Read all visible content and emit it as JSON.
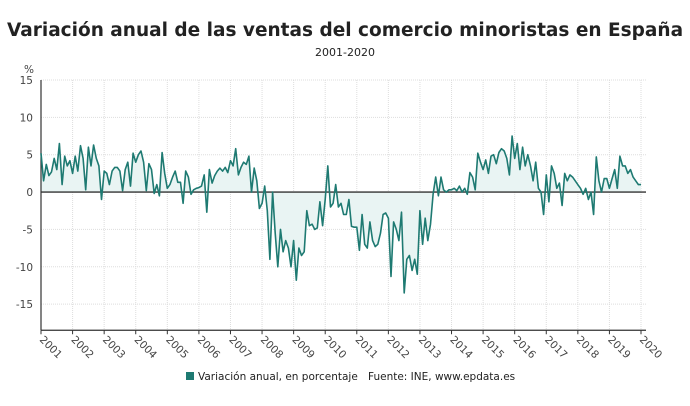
{
  "chart_data": {
    "type": "line",
    "title": "Variación anual de las ventas del comercio minoristas en España",
    "subtitle": "2001-2020",
    "ylabel": "%",
    "xlabel": "",
    "ylim": [
      -18.5,
      15
    ],
    "yticks": [
      15,
      10,
      5,
      0,
      -5,
      -10,
      -15
    ],
    "xticks": [
      "2001",
      "2002",
      "2003",
      "2004",
      "2005",
      "2006",
      "2007",
      "2008",
      "2009",
      "2010",
      "2011",
      "2012",
      "2013",
      "2014",
      "2015",
      "2016",
      "2017",
      "2018",
      "2019",
      "2020"
    ],
    "grid": true,
    "frequency": "monthly",
    "series": [
      {
        "name": "Variación anual, en porcentaje",
        "color": "#1e7a72",
        "fill_color": "#e9f4f3",
        "values_by_year": {
          "2001": [
            5.2,
            1.5,
            3.7,
            2.2,
            2.7,
            4.5,
            3.0,
            6.5,
            1.0,
            4.8,
            3.5,
            4.2
          ],
          "2002": [
            2.5,
            4.8,
            2.8,
            6.2,
            4.5,
            0.3,
            6.0,
            3.5,
            6.3,
            4.5,
            3.5,
            -1.0
          ],
          "2003": [
            2.8,
            2.5,
            1.0,
            2.8,
            3.3,
            3.3,
            2.8,
            0.2,
            3.0,
            4.0,
            0.8,
            5.2
          ],
          "2004": [
            4.0,
            5.0,
            5.5,
            4.0,
            0.2,
            3.8,
            3.0,
            -0.2,
            1.0,
            -0.5,
            5.3,
            2.5
          ],
          "2005": [
            0.5,
            1.0,
            2.0,
            2.8,
            1.3,
            1.3,
            -1.5,
            2.8,
            2.0,
            -0.3,
            0.3,
            0.5
          ],
          "2006": [
            0.6,
            0.8,
            2.3,
            -2.7,
            3.0,
            1.2,
            2.2,
            2.8,
            3.2,
            2.8,
            3.3,
            2.6
          ],
          "2007": [
            4.2,
            3.5,
            5.8,
            2.3,
            3.3,
            4.0,
            3.7,
            4.8,
            0.0,
            3.2,
            1.5,
            -2.2
          ],
          "2008": [
            -1.5,
            0.8,
            -2.5,
            -9.0,
            0.0,
            -5.5,
            -10.0,
            -5.0,
            -8.0,
            -6.5,
            -7.5,
            -10.0
          ],
          "2009": [
            -6.5,
            -11.8,
            -7.5,
            -8.5,
            -8.0,
            -2.5,
            -4.5,
            -4.3,
            -5.0,
            -4.8,
            -1.3,
            -4.5
          ],
          "2010": [
            -1.0,
            3.5,
            -2.0,
            -1.5,
            1.0,
            -2.0,
            -1.5,
            -3.0,
            -3.0,
            -1.0,
            -4.6,
            -4.7
          ],
          "2011": [
            -4.7,
            -7.8,
            -3.0,
            -7.0,
            -7.5,
            -4.0,
            -6.5,
            -7.3,
            -7.0,
            -5.5,
            -3.0,
            -2.8
          ],
          "2012": [
            -3.5,
            -11.3,
            -4.0,
            -5.0,
            -6.5,
            -2.7,
            -13.5,
            -9.0,
            -8.5,
            -10.5,
            -9.0,
            -11.0
          ],
          "2013": [
            -2.5,
            -7.0,
            -3.5,
            -6.5,
            -4.3,
            -0.3,
            2.0,
            -0.5,
            2.0,
            0.3,
            0.0,
            0.3
          ],
          "2014": [
            0.3,
            0.5,
            0.2,
            0.8,
            0.0,
            0.5,
            -0.3,
            2.6,
            2.0,
            0.3,
            5.2,
            4.0
          ],
          "2015": [
            3.0,
            4.3,
            2.5,
            4.8,
            5.0,
            3.8,
            5.3,
            5.8,
            5.5,
            4.5,
            2.3,
            7.5
          ],
          "2016": [
            4.5,
            6.5,
            3.0,
            6.0,
            3.5,
            5.0,
            3.5,
            1.5,
            4.0,
            0.5,
            0.0,
            -3.0
          ],
          "2017": [
            2.3,
            -1.3,
            3.5,
            2.5,
            0.5,
            1.2,
            -1.8,
            2.5,
            1.5,
            2.3,
            2.0,
            1.5
          ],
          "2018": [
            1.0,
            0.5,
            -0.3,
            0.5,
            -1.0,
            0.0,
            -3.0,
            4.7,
            1.5,
            0.0,
            1.8,
            1.8
          ],
          "2019": [
            0.5,
            1.8,
            3.0,
            0.5,
            4.8,
            3.5,
            3.5,
            2.5,
            3.0,
            2.0,
            1.5,
            1.0
          ],
          "2020": [
            1.0
          ]
        }
      }
    ],
    "source": "Fuente: INE, www.epdata.es",
    "legend": "bottom"
  }
}
